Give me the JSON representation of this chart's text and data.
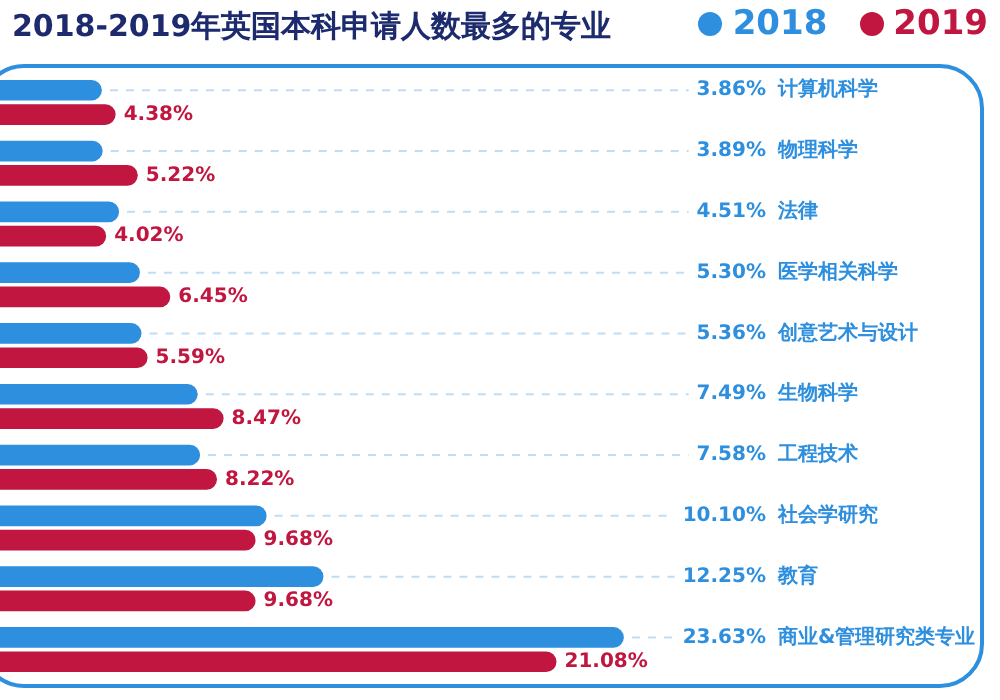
{
  "chart_data": {
    "type": "bar",
    "orientation": "horizontal",
    "title": "2018-2019年英国本科申请人数最多的专业",
    "categories": [
      "计算机科学",
      "物理科学",
      "法律",
      "医学相关科学",
      "创意艺术与设计",
      "生物科学",
      "工程技术",
      "社会学研究",
      "教育",
      "商业&管理研究类专业"
    ],
    "series": [
      {
        "name": "2018",
        "color": "#2e8fde",
        "values": [
          3.86,
          3.89,
          4.51,
          5.3,
          5.36,
          7.49,
          7.58,
          10.1,
          12.25,
          23.63
        ],
        "value_labels": [
          "3.86%",
          "3.89%",
          "4.51%",
          "5.30%",
          "5.36%",
          "7.49%",
          "7.58%",
          "10.10%",
          "12.25%",
          "23.63%"
        ]
      },
      {
        "name": "2019",
        "color": "#c0163f",
        "values": [
          4.38,
          5.22,
          4.02,
          6.45,
          5.59,
          8.47,
          8.22,
          9.68,
          9.68,
          21.08
        ],
        "value_labels": [
          "4.38%",
          "5.22%",
          "4.02%",
          "6.45%",
          "5.59%",
          "8.47%",
          "8.22%",
          "9.68%",
          "9.68%",
          "21.08%"
        ]
      }
    ],
    "data_labels": true,
    "legend": "top right"
  }
}
